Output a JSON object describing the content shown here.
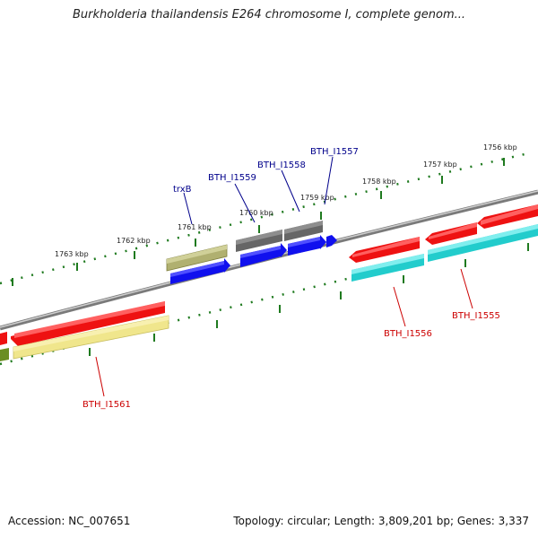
{
  "title": "Burkholderia thailandensis E264 chromosome I, complete genom...",
  "footer": {
    "accession": "Accession: NC_007651",
    "summary": "Topology: circular; Length: 3,809,201 bp; Genes: 3,337"
  },
  "colors": {
    "backbone": "#8a8a8a",
    "ticks": "#1f7a1f",
    "red_gene": "#ee1111",
    "blue_gene": "#1010ee",
    "cyan_gene": "#22cccc",
    "gray_gene": "#666666",
    "olive_gene": "#a8a860",
    "paleyellow_gene": "#f0e68c",
    "darkolive_gene": "#6b8e23",
    "forward_label": "#00008b",
    "reverse_label": "#cc0000"
  },
  "scale_labels": [
    "1763 kbp",
    "1762 kbp",
    "1761 kbp",
    "1760 kbp",
    "1759 kbp",
    "1758 kbp",
    "1757 kbp",
    "1756 kbp"
  ],
  "gene_labels": {
    "trxB": "trxB",
    "bth_i1559": "BTH_I1559",
    "bth_i1558": "BTH_I1558",
    "bth_i1557": "BTH_I1557",
    "bth_i1561": "BTH_I1561",
    "bth_i1556": "BTH_I1556",
    "bth_i1555": "BTH_I1555"
  }
}
